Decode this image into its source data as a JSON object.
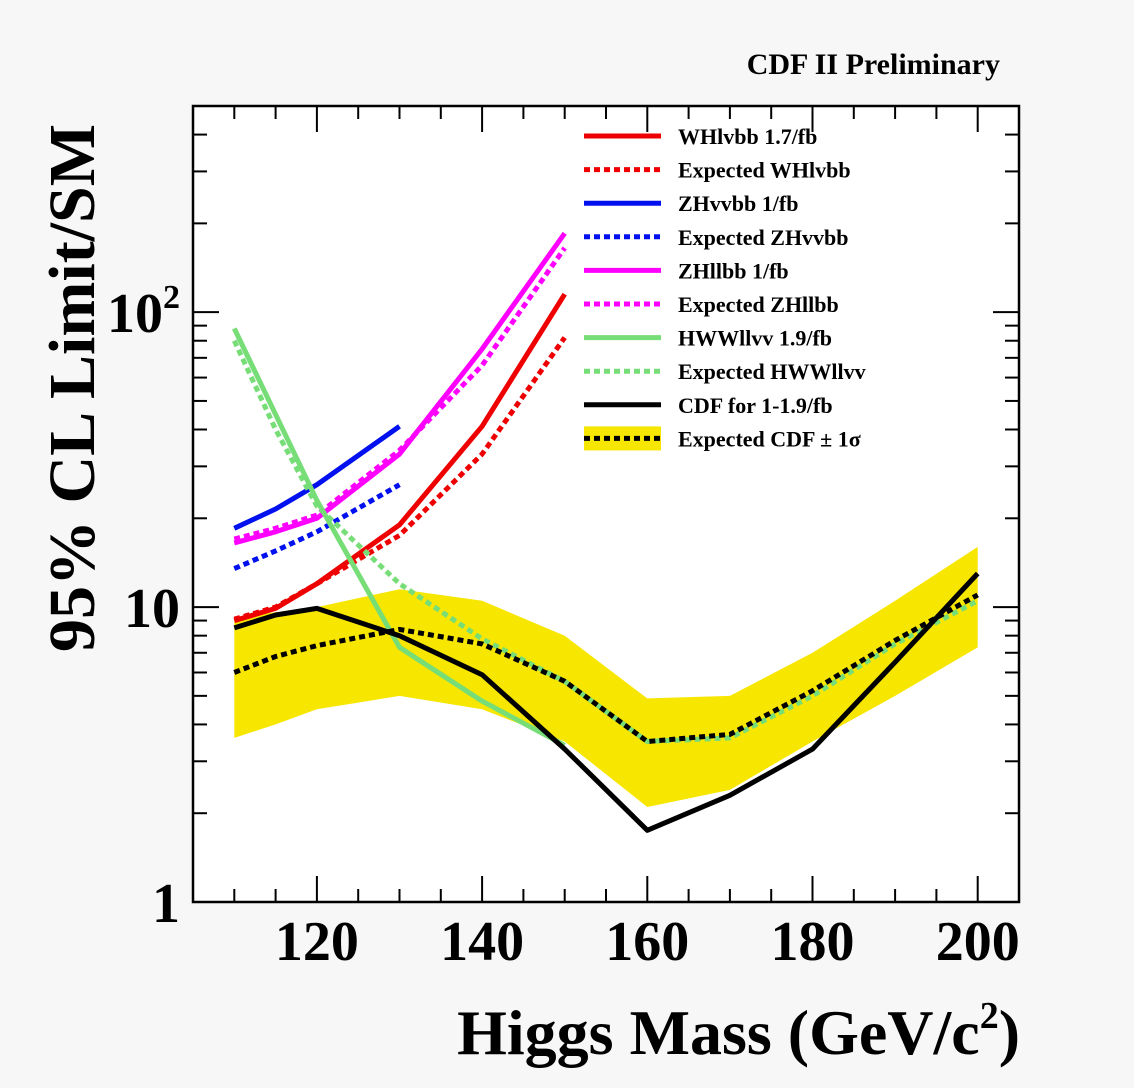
{
  "chart_data": {
    "type": "line",
    "title": "CDF II Preliminary",
    "xlabel": "Higgs Mass (GeV/c",
    "xlabel_sup": "2",
    "xlabel_close": ")",
    "ylabel": "95% CL Limit/SM",
    "xlim": [
      105,
      205
    ],
    "ylim": [
      1,
      500
    ],
    "yscale": "log",
    "legend_position": "top-right",
    "x_ticks": [
      {
        "value": 120,
        "label": "120"
      },
      {
        "value": 140,
        "label": "140"
      },
      {
        "value": 160,
        "label": "160"
      },
      {
        "value": 180,
        "label": "180"
      },
      {
        "value": 200,
        "label": "200"
      }
    ],
    "y_ticks": [
      {
        "value": 1,
        "label": "1",
        "sup": ""
      },
      {
        "value": 10,
        "label": "10",
        "sup": ""
      },
      {
        "value": 100,
        "label": "10",
        "sup": "2"
      }
    ],
    "band": {
      "name": "Expected CDF ± 1σ",
      "color": "#f7e600",
      "x": [
        110,
        115,
        120,
        130,
        140,
        150,
        160,
        170,
        180,
        190,
        200
      ],
      "upper": [
        9.2,
        9.6,
        10.0,
        11.5,
        10.5,
        8.0,
        4.9,
        5.0,
        7.0,
        10.5,
        16.0
      ],
      "lower": [
        3.6,
        4.0,
        4.5,
        5.0,
        4.5,
        3.5,
        2.1,
        2.4,
        3.5,
        5.0,
        7.3
      ]
    },
    "series": [
      {
        "name": "WHlvbb 1.7/fb",
        "color": "#ee0000",
        "dash": "solid",
        "x": [
          110,
          115,
          120,
          130,
          140,
          150
        ],
        "values": [
          9.0,
          9.9,
          12.0,
          19.0,
          41.0,
          115.0
        ]
      },
      {
        "name": "Expected WHlvbb",
        "color": "#ee0000",
        "dash": "dot",
        "x": [
          110,
          115,
          120,
          130,
          140,
          150
        ],
        "values": [
          9.1,
          10.0,
          12.0,
          17.5,
          33.0,
          82.0
        ]
      },
      {
        "name": "ZHvvbb 1/fb",
        "color": "#0010ee",
        "dash": "solid",
        "x": [
          110,
          115,
          120,
          130
        ],
        "values": [
          18.5,
          21.5,
          26.0,
          41.0
        ]
      },
      {
        "name": "Expected ZHvvbb",
        "color": "#0010ee",
        "dash": "dot",
        "x": [
          110,
          115,
          120,
          130
        ],
        "values": [
          13.5,
          15.5,
          18.0,
          26.0
        ]
      },
      {
        "name": "ZHllbb 1/fb",
        "color": "#ff00ff",
        "dash": "solid",
        "x": [
          110,
          115,
          120,
          130,
          140,
          150
        ],
        "values": [
          16.5,
          18.0,
          20.0,
          33.0,
          75.0,
          185.0
        ]
      },
      {
        "name": "Expected ZHllbb",
        "color": "#ff00ff",
        "dash": "dot",
        "x": [
          110,
          115,
          120,
          130,
          140,
          150
        ],
        "values": [
          17.0,
          18.5,
          20.5,
          34.0,
          66.0,
          165.0
        ]
      },
      {
        "name": "HWWllvv 1.9/fb",
        "color": "#77dd77",
        "dash": "solid",
        "x": [
          110,
          115,
          120,
          130,
          140,
          150
        ],
        "values": [
          88.0,
          45.0,
          23.0,
          7.3,
          4.8,
          3.4
        ]
      },
      {
        "name": "Expected HWWllvv",
        "color": "#77dd77",
        "dash": "dot",
        "x": [
          110,
          115,
          120,
          130,
          140,
          150,
          160,
          170,
          180,
          190,
          200
        ],
        "values": [
          80.0,
          40.0,
          22.0,
          12.0,
          7.8,
          5.6,
          3.5,
          3.6,
          5.0,
          7.5,
          10.5
        ]
      },
      {
        "name": "CDF for 1-1.9/fb",
        "color": "#000000",
        "dash": "solid",
        "x": [
          110,
          115,
          120,
          130,
          140,
          150,
          160,
          170,
          180,
          190,
          200
        ],
        "values": [
          8.5,
          9.4,
          9.9,
          8.0,
          5.9,
          3.3,
          1.75,
          2.3,
          3.3,
          6.5,
          13.0
        ]
      },
      {
        "name": "Expected CDF ± 1σ",
        "color": "#000000",
        "dash": "dot",
        "x": [
          110,
          115,
          120,
          130,
          140,
          150,
          160,
          170,
          180,
          190,
          200
        ],
        "values": [
          6.0,
          6.8,
          7.4,
          8.4,
          7.5,
          5.6,
          3.5,
          3.7,
          5.2,
          7.7,
          11.0
        ]
      }
    ]
  }
}
